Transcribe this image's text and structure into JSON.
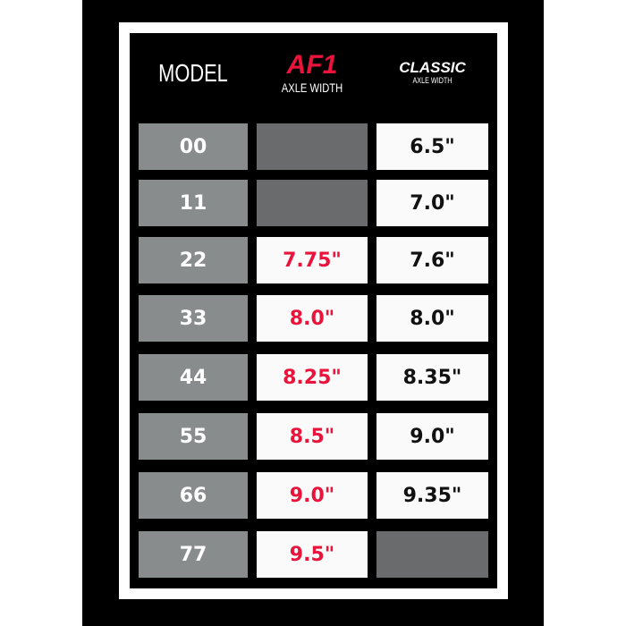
{
  "header": {
    "model": "MODEL",
    "af1": "AF1",
    "af1_sub": "AXLE WIDTH",
    "classic": "CLASSIC",
    "classic_sub": "AXLE WIDTH"
  },
  "colors": {
    "accent": "#e8143c",
    "model_cell": "#888c8c",
    "empty_cell": "#6a6b6d"
  },
  "rows": [
    {
      "model": "00",
      "af1": null,
      "classic": "6.5\""
    },
    {
      "model": "11",
      "af1": null,
      "classic": "7.0\""
    },
    {
      "model": "22",
      "af1": "7.75\"",
      "classic": "7.6\""
    },
    {
      "model": "33",
      "af1": "8.0\"",
      "classic": "8.0\""
    },
    {
      "model": "44",
      "af1": "8.25\"",
      "classic": "8.35\""
    },
    {
      "model": "55",
      "af1": "8.5\"",
      "classic": "9.0\""
    },
    {
      "model": "66",
      "af1": "9.0\"",
      "classic": "9.35\""
    },
    {
      "model": "77",
      "af1": "9.5\"",
      "classic": null
    }
  ]
}
